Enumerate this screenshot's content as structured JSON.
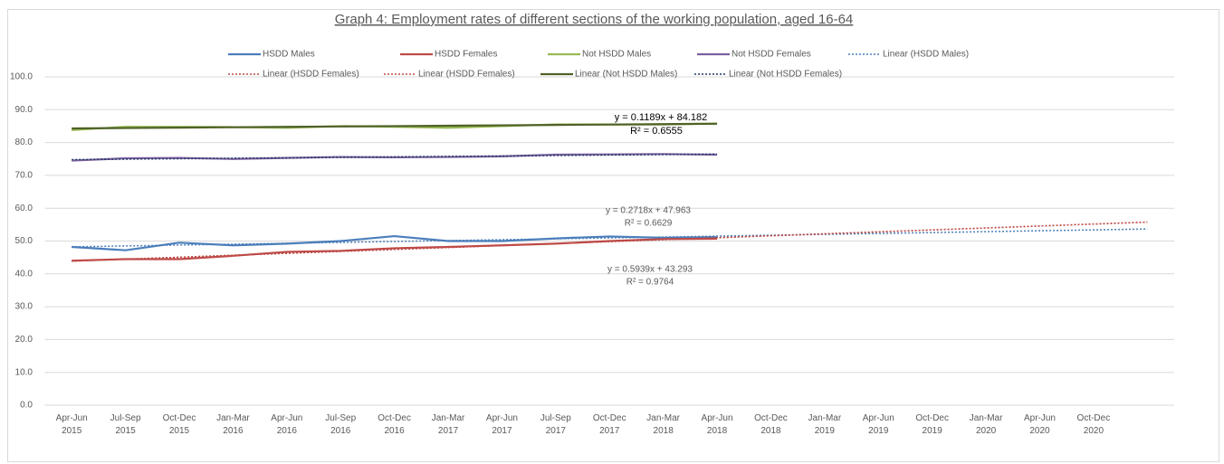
{
  "chart_data": {
    "type": "line",
    "title": "Graph 4: Employment rates of different sections of the working population, aged 16-64",
    "categories": [
      "Apr-Jun 2015",
      "Jul-Sep 2015",
      "Oct-Dec 2015",
      "Jan-Mar 2016",
      "Apr-Jun 2016",
      "Jul-Sep 2016",
      "Oct-Dec 2016",
      "Jan-Mar 2017",
      "Apr-Jun 2017",
      "Jul-Sep 2017",
      "Oct-Dec 2017",
      "Jan-Mar 2018",
      "Apr-Jun 2018",
      "Oct-Dec 2018",
      "Jan-Mar 2019",
      "Apr-Jun 2019",
      "Oct-Dec 2019",
      "Jan-Mar 2020",
      "Apr-Jun 2020",
      "Oct-Dec 2020",
      null
    ],
    "ylim": [
      0,
      100
    ],
    "yticks": [
      {
        "value": 0,
        "label": "0.0"
      },
      {
        "value": 10,
        "label": "10.0"
      },
      {
        "value": 20,
        "label": "20.0"
      },
      {
        "value": 30,
        "label": "30.0"
      },
      {
        "value": 40,
        "label": "40.0"
      },
      {
        "value": 50,
        "label": "50.0"
      },
      {
        "value": 60,
        "label": "60.0"
      },
      {
        "value": 70,
        "label": "70.0"
      },
      {
        "value": 80,
        "label": "80.0"
      },
      {
        "value": 90,
        "label": "90.0"
      },
      {
        "value": 100,
        "label": "100.0"
      }
    ],
    "grid": true,
    "legend": "top",
    "series": [
      {
        "name": "HSDD Males",
        "color": "#4a7ebb",
        "dash": "solid",
        "values": [
          48.2,
          47.2,
          49.5,
          48.7,
          49.2,
          50.0,
          51.5,
          50.0,
          50.0,
          50.8,
          51.4,
          51.0,
          51.2,
          null,
          null,
          null,
          null,
          null,
          null,
          null,
          null
        ]
      },
      {
        "name": "HSDD Females",
        "color": "#be4b48",
        "dash": "solid",
        "values": [
          44.0,
          44.5,
          44.5,
          45.5,
          46.7,
          47.0,
          47.8,
          48.2,
          48.7,
          49.2,
          50.0,
          50.6,
          50.7,
          null,
          null,
          null,
          null,
          null,
          null,
          null,
          null
        ]
      },
      {
        "name": "Not HSDD Males",
        "color": "#98b954",
        "dash": "solid",
        "values": [
          83.8,
          84.8,
          84.8,
          84.7,
          84.5,
          85.0,
          84.8,
          84.5,
          85.0,
          85.5,
          85.5,
          85.5,
          85.8,
          null,
          null,
          null,
          null,
          null,
          null,
          null,
          null
        ]
      },
      {
        "name": "Not HSDD Females",
        "color": "#7d60a0",
        "dash": "solid",
        "values": [
          74.5,
          75.2,
          75.3,
          75.0,
          75.3,
          75.6,
          75.5,
          75.6,
          75.8,
          76.3,
          76.4,
          76.5,
          76.3,
          null,
          null,
          null,
          null,
          null,
          null,
          null,
          null
        ]
      },
      {
        "name": "Linear (HSDD Males)",
        "color": "#4a7ebb",
        "dash": "dotted",
        "values": [
          48.23,
          48.51,
          48.78,
          49.05,
          49.32,
          49.59,
          49.87,
          50.14,
          50.41,
          50.68,
          50.95,
          51.22,
          51.5,
          51.77,
          52.04,
          52.31,
          52.58,
          52.86,
          53.13,
          53.4,
          53.67
        ]
      },
      {
        "name": "Linear (HSDD Females)",
        "color": "#be4b48",
        "dash": "dotted",
        "values": [
          43.89,
          44.48,
          45.07,
          45.67,
          46.26,
          46.86,
          47.45,
          48.04,
          48.64,
          49.23,
          49.83,
          50.42,
          51.01,
          51.61,
          52.2,
          52.8,
          53.39,
          53.98,
          54.58,
          55.17,
          55.77
        ]
      },
      {
        "name": "Linear (HSDD Females)",
        "color": "#be4b48",
        "dash": "dotted",
        "values": [
          43.89,
          44.48,
          45.07,
          45.67,
          46.26,
          46.86,
          47.45,
          48.04,
          48.64,
          49.23,
          49.83,
          50.42,
          51.01,
          51.61,
          52.2,
          52.8,
          53.39,
          53.98,
          54.58,
          55.17,
          55.77
        ]
      },
      {
        "name": "Linear (Not HSDD Males)",
        "color": "#4f6228",
        "dash": "solid",
        "values": [
          84.3,
          84.42,
          84.54,
          84.66,
          84.78,
          84.9,
          85.01,
          85.13,
          85.25,
          85.37,
          85.49,
          85.61,
          85.73,
          null,
          null,
          null,
          null,
          null,
          null,
          null,
          null
        ]
      },
      {
        "name": "Linear (Not HSDD Females)",
        "color": "#1f3864",
        "dash": "dotted",
        "values": [
          74.8,
          74.94,
          75.08,
          75.22,
          75.36,
          75.5,
          75.64,
          75.78,
          75.92,
          76.06,
          76.2,
          76.34,
          76.48,
          null,
          null,
          null,
          null,
          null,
          null,
          null,
          null
        ]
      }
    ],
    "annotations": [
      "y = 0.1189x + 84.182",
      "R² = 0.6555",
      "y = 0.2718x + 47.963",
      "R² = 0.6629",
      "y = 0.5939x + 43.293",
      "R² = 0.9764"
    ]
  }
}
